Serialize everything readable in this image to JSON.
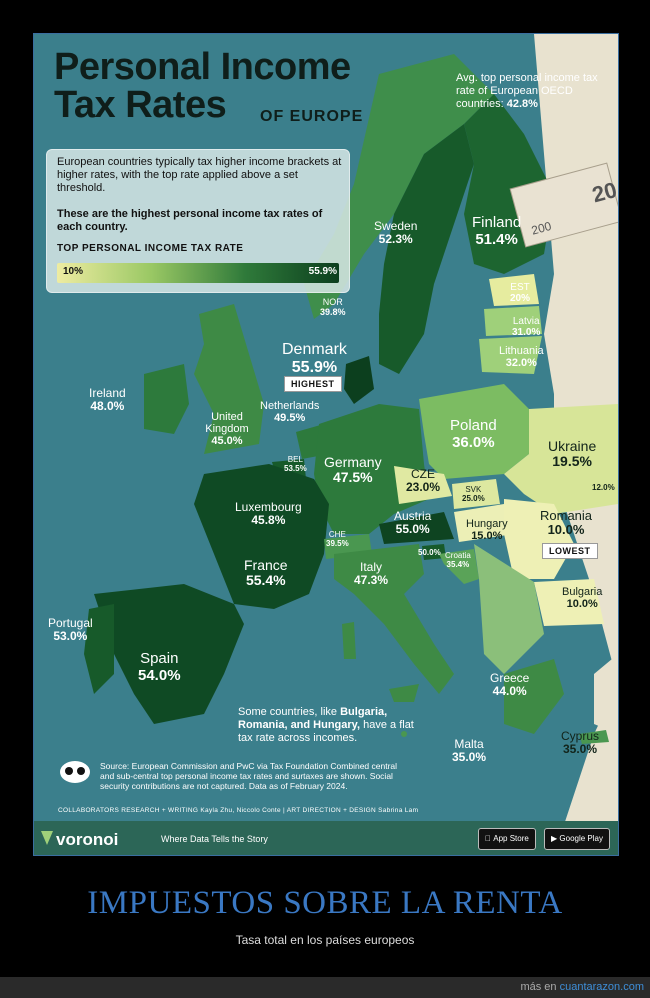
{
  "title_line1": "Personal Income",
  "title_line2": "Tax Rates",
  "subtitle": "OF EUROPE",
  "avg_text": "Avg. top personal income tax rate of European OECD countries:",
  "avg_value": "42.8%",
  "legend": {
    "desc": "European countries typically tax higher income brackets at higher rates, with the top rate applied above a set threshold.",
    "desc_bold": "These are the highest personal income tax rates of each country.",
    "label": "TOP PERSONAL INCOME TAX RATE",
    "min": "10%",
    "max": "55.9%"
  },
  "countries": {
    "sweden": {
      "name": "Sweden",
      "rate": "52.3%"
    },
    "finland": {
      "name": "Finland",
      "rate": "51.4%"
    },
    "est": {
      "name": "EST",
      "rate": "20%"
    },
    "latvia": {
      "name": "Latvia",
      "rate": "31.0%"
    },
    "lithuania": {
      "name": "Lithuania",
      "rate": "32.0%"
    },
    "nor": {
      "name": "NOR",
      "rate": "39.8%"
    },
    "denmark": {
      "name": "Denmark",
      "rate": "55.9%"
    },
    "ireland": {
      "name": "Ireland",
      "rate": "48.0%"
    },
    "uk": {
      "name": "United Kingdom",
      "rate": "45.0%"
    },
    "netherlands": {
      "name": "Netherlands",
      "rate": "49.5%"
    },
    "poland": {
      "name": "Poland",
      "rate": "36.0%"
    },
    "ukraine": {
      "name": "Ukraine",
      "rate": "19.5%"
    },
    "moldova": {
      "rate": "12.0%"
    },
    "bel": {
      "name": "BEL",
      "rate": "53.5%"
    },
    "germany": {
      "name": "Germany",
      "rate": "47.5%"
    },
    "cze": {
      "name": "CZE",
      "rate": "23.0%"
    },
    "svk": {
      "name": "SVK",
      "rate": "25.0%"
    },
    "luxembourg": {
      "name": "Luxembourg",
      "rate": "45.8%"
    },
    "austria": {
      "name": "Austria",
      "rate": "55.0%"
    },
    "hungary": {
      "name": "Hungary",
      "rate": "15.0%"
    },
    "romania": {
      "name": "Romania",
      "rate": "10.0%"
    },
    "che": {
      "name": "CHE",
      "rate": "39.5%"
    },
    "slovenia": {
      "rate": "50.0%"
    },
    "croatia": {
      "name": "Croatia",
      "rate": "35.4%"
    },
    "france": {
      "name": "France",
      "rate": "55.4%"
    },
    "italy": {
      "name": "Italy",
      "rate": "47.3%"
    },
    "bulgaria": {
      "name": "Bulgaria",
      "rate": "10.0%"
    },
    "portugal": {
      "name": "Portugal",
      "rate": "53.0%"
    },
    "spain": {
      "name": "Spain",
      "rate": "54.0%"
    },
    "greece": {
      "name": "Greece",
      "rate": "44.0%"
    },
    "cyprus": {
      "name": "Cyprus",
      "rate": "35.0%"
    },
    "malta": {
      "name": "Malta",
      "rate": "35.0%"
    }
  },
  "badges": {
    "highest": "HIGHEST",
    "lowest": "LOWEST"
  },
  "note": {
    "pre": "Some countries, like",
    "bold": "Bulgaria, Romania, and Hungary,",
    "post": "have a flat tax rate across incomes."
  },
  "source": "Source: European Commission and PwC via Tax Foundation Combined central and sub-central top personal income tax rates and surtaxes are shown. Social security contributions are not captured. Data as of February 2024.",
  "collaborators": "COLLABORATORS   RESEARCH + WRITING Kayla Zhu, Niccolo Conte  |  ART DIRECTION + DESIGN Sabrina Lam",
  "footer": {
    "brand": "voronoi",
    "tagline": "Where Data Tells the Story",
    "app_store": "App Store",
    "google_play": "Google Play"
  },
  "caption": "IMPUESTOS SOBRE LA RENTA",
  "caption_sub": "Tasa total en los países europeos",
  "credit_pre": "más en",
  "credit_site": "cuantarazon.com",
  "colors": {
    "sea": "#3b7f8c",
    "dark_green": "#0f4a24",
    "mid_green": "#3e8a45",
    "light_green": "#9fd07a",
    "pale": "#e7eaa8",
    "land_other": "#e8e2cf"
  }
}
